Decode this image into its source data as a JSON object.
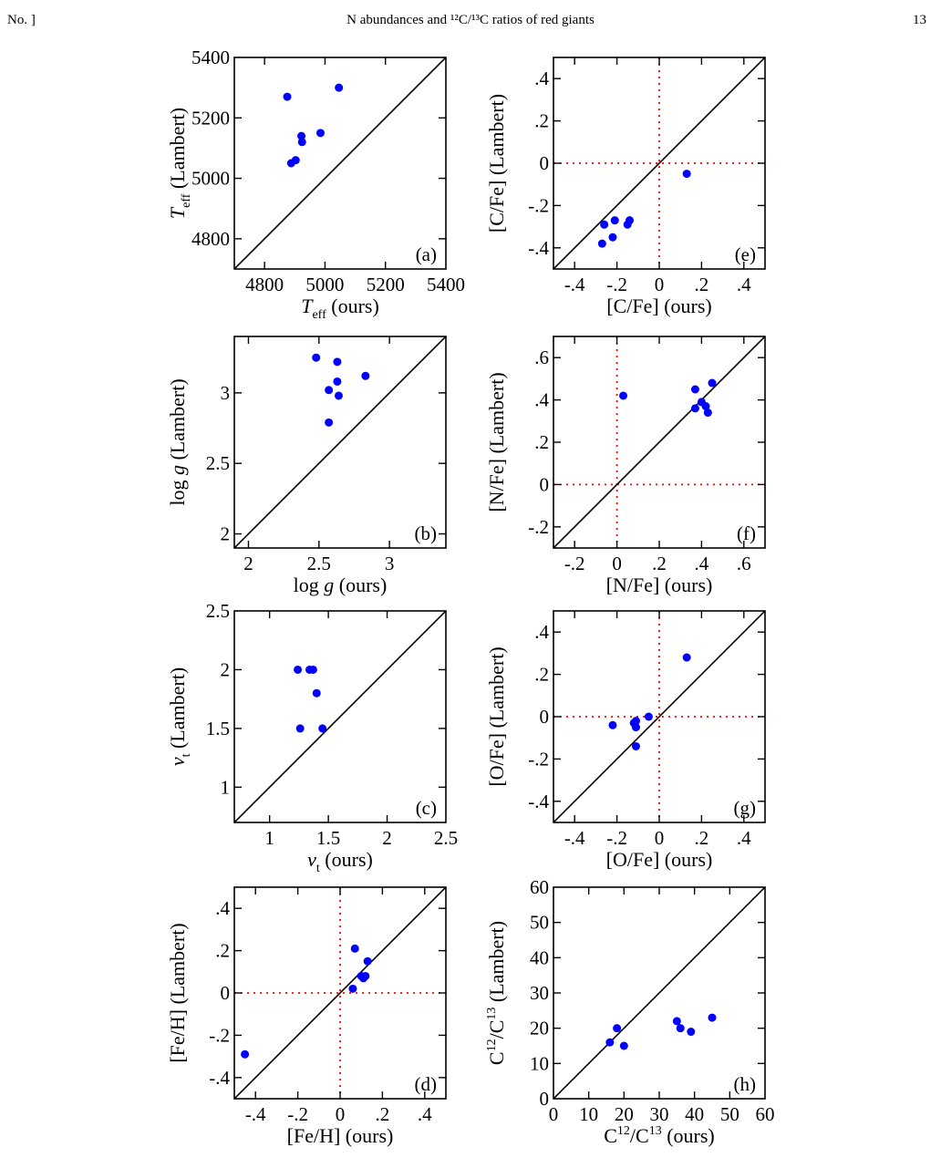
{
  "page_header": {
    "left": "No. ]",
    "center": "N abundances and ¹²C/¹³C ratios of red giants",
    "right": "13"
  },
  "colors": {
    "points": "#0000ff",
    "identity_line": "#000000",
    "zero_lines": "#ff0000"
  },
  "chart_data": [
    {
      "id": "a",
      "type": "scatter",
      "panel_label": "(a)",
      "xlabel": {
        "main": "T",
        "sub": "eff",
        "suffix": " (ours)"
      },
      "ylabel": {
        "main": "T",
        "sub": "eff",
        "suffix": " (Lambert)"
      },
      "xlim": [
        4700,
        5400
      ],
      "ylim": [
        4700,
        5400
      ],
      "xticks": [
        4800,
        5000,
        5200,
        5400
      ],
      "yticks": [
        4800,
        5000,
        5200,
        5400
      ],
      "identity_line": true,
      "zero_lines": false,
      "x": [
        4875,
        4888,
        4903,
        4922,
        4924,
        4985,
        5046
      ],
      "y": [
        5270,
        5050,
        5060,
        5140,
        5120,
        5150,
        5300
      ]
    },
    {
      "id": "e",
      "type": "scatter",
      "panel_label": "(e)",
      "xlabel": {
        "main": "[C/Fe] (ours)"
      },
      "ylabel": {
        "main": "[C/Fe] (Lambert)"
      },
      "xlim": [
        -0.5,
        0.5
      ],
      "ylim": [
        -0.5,
        0.5
      ],
      "xticks": [
        -0.4,
        -0.2,
        0,
        0.2,
        0.4
      ],
      "yticks": [
        -0.4,
        -0.2,
        0,
        0.2,
        0.4
      ],
      "identity_line": true,
      "zero_lines": true,
      "x": [
        -0.27,
        -0.26,
        -0.22,
        -0.21,
        -0.15,
        -0.14,
        0.13
      ],
      "y": [
        -0.38,
        -0.29,
        -0.35,
        -0.27,
        -0.29,
        -0.27,
        -0.05
      ]
    },
    {
      "id": "b",
      "type": "scatter",
      "panel_label": "(b)",
      "xlabel": {
        "main": "log ",
        "italic": "g",
        "suffix": " (ours)"
      },
      "ylabel": {
        "main": "log ",
        "italic": "g",
        "suffix": " (Lambert)"
      },
      "xlim": [
        1.9,
        3.4
      ],
      "ylim": [
        1.9,
        3.4
      ],
      "xticks": [
        2,
        2.5,
        3
      ],
      "yticks": [
        2,
        2.5,
        3
      ],
      "identity_line": true,
      "zero_lines": false,
      "x": [
        2.48,
        2.57,
        2.57,
        2.63,
        2.63,
        2.64,
        2.83
      ],
      "y": [
        3.25,
        3.02,
        2.79,
        3.22,
        3.08,
        2.98,
        3.12
      ]
    },
    {
      "id": "f",
      "type": "scatter",
      "panel_label": "(f)",
      "xlabel": {
        "main": "[N/Fe] (ours)"
      },
      "ylabel": {
        "main": "[N/Fe] (Lambert)"
      },
      "xlim": [
        -0.3,
        0.7
      ],
      "ylim": [
        -0.3,
        0.7
      ],
      "xticks": [
        -0.2,
        0,
        0.2,
        0.4,
        0.6
      ],
      "yticks": [
        -0.2,
        0,
        0.2,
        0.4,
        0.6
      ],
      "identity_line": true,
      "zero_lines": true,
      "x": [
        0.03,
        0.37,
        0.37,
        0.4,
        0.42,
        0.43,
        0.45
      ],
      "y": [
        0.42,
        0.45,
        0.36,
        0.39,
        0.37,
        0.34,
        0.48
      ]
    },
    {
      "id": "c",
      "type": "scatter",
      "panel_label": "(c)",
      "xlabel": {
        "main": "v",
        "sub": "t",
        "suffix": " (ours)",
        "italic_main": true
      },
      "ylabel": {
        "main": "v",
        "sub": "t",
        "suffix": " (Lambert)",
        "italic_main": true
      },
      "xlim": [
        0.7,
        2.5
      ],
      "ylim": [
        0.7,
        2.5
      ],
      "xticks": [
        1,
        1.5,
        2,
        2.5
      ],
      "yticks": [
        1,
        1.5,
        2,
        2.5
      ],
      "identity_line": true,
      "zero_lines": false,
      "x": [
        1.24,
        1.26,
        1.34,
        1.37,
        1.4,
        1.45
      ],
      "y": [
        2.0,
        1.5,
        2.0,
        2.0,
        1.8,
        1.5
      ]
    },
    {
      "id": "g",
      "type": "scatter",
      "panel_label": "(g)",
      "xlabel": {
        "main": "[O/Fe] (ours)"
      },
      "ylabel": {
        "main": "[O/Fe] (Lambert)"
      },
      "xlim": [
        -0.5,
        0.5
      ],
      "ylim": [
        -0.5,
        0.5
      ],
      "xticks": [
        -0.4,
        -0.2,
        0,
        0.2,
        0.4
      ],
      "yticks": [
        -0.4,
        -0.2,
        0,
        0.2,
        0.4
      ],
      "identity_line": true,
      "zero_lines": true,
      "x": [
        -0.22,
        -0.12,
        -0.11,
        -0.11,
        -0.11,
        -0.05,
        0.13
      ],
      "y": [
        -0.04,
        -0.03,
        -0.05,
        -0.02,
        -0.14,
        0.0,
        0.28
      ]
    },
    {
      "id": "d",
      "type": "scatter",
      "panel_label": "(d)",
      "xlabel": {
        "main": "[Fe/H] (ours)"
      },
      "ylabel": {
        "main": "[Fe/H] (Lambert)"
      },
      "xlim": [
        -0.5,
        0.5
      ],
      "ylim": [
        -0.5,
        0.5
      ],
      "xticks": [
        -0.4,
        -0.2,
        0,
        0.2,
        0.4
      ],
      "yticks": [
        -0.4,
        -0.2,
        0,
        0.2,
        0.4
      ],
      "identity_line": true,
      "zero_lines": true,
      "x": [
        -0.45,
        0.06,
        0.07,
        0.1,
        0.11,
        0.12,
        0.13
      ],
      "y": [
        -0.29,
        0.02,
        0.21,
        0.08,
        0.07,
        0.08,
        0.15
      ]
    },
    {
      "id": "h",
      "type": "scatter",
      "panel_label": "(h)",
      "xlabel": {
        "pre": "C",
        "sup1": "12",
        "mid": "/C",
        "sup2": "13",
        "suffix": " (ours)"
      },
      "ylabel": {
        "pre": "C",
        "sup1": "12",
        "mid": "/C",
        "sup2": "13",
        "suffix": " (Lambert)"
      },
      "xlim": [
        0,
        60
      ],
      "ylim": [
        0,
        60
      ],
      "xticks": [
        0,
        10,
        20,
        30,
        40,
        50,
        60
      ],
      "yticks": [
        0,
        10,
        20,
        30,
        40,
        50,
        60
      ],
      "identity_line": true,
      "zero_lines": false,
      "x": [
        16,
        18,
        20,
        35,
        36,
        39,
        45
      ],
      "y": [
        16,
        20,
        15,
        22,
        20,
        19,
        23
      ]
    }
  ]
}
